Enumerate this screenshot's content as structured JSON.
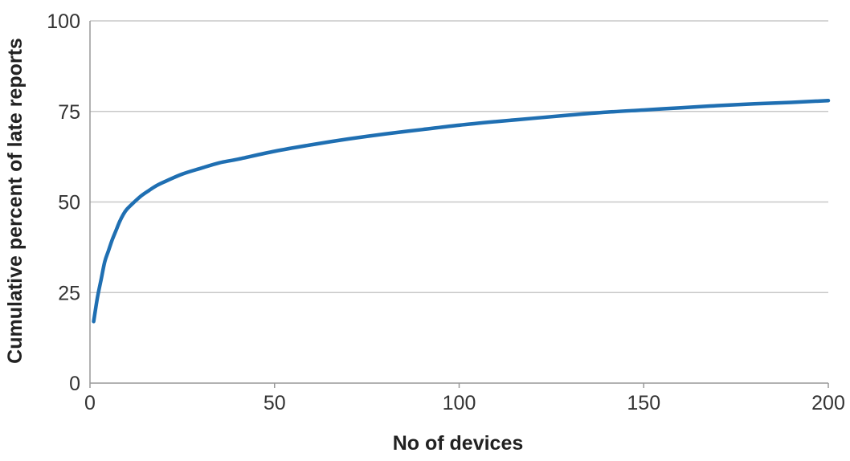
{
  "chart_data": {
    "type": "line",
    "title": "",
    "xlabel": "No of devices",
    "ylabel": "Cumulative percent of late reports",
    "xlim": [
      0,
      200
    ],
    "ylim": [
      0,
      100
    ],
    "xticks": [
      0,
      50,
      100,
      150,
      200
    ],
    "yticks": [
      0,
      25,
      50,
      75,
      100
    ],
    "grid": "horizontal",
    "legend": "none",
    "colors": {
      "line": "#1f6fb2",
      "grid": "#c8c8c8",
      "axis": "#999999"
    },
    "series": [
      {
        "x": [
          1,
          2,
          3,
          4,
          5,
          6,
          7,
          8,
          9,
          10,
          12,
          14,
          16,
          18,
          20,
          25,
          30,
          35,
          40,
          50,
          60,
          70,
          80,
          90,
          100,
          110,
          120,
          130,
          140,
          150,
          160,
          170,
          180,
          190,
          200
        ],
        "y": [
          17,
          23.5,
          28.5,
          33.5,
          36.5,
          39.5,
          42,
          44.5,
          46.5,
          48,
          50,
          51.8,
          53.2,
          54.5,
          55.5,
          57.7,
          59.3,
          60.8,
          61.8,
          64,
          65.8,
          67.4,
          68.8,
          70,
          71.2,
          72.2,
          73.1,
          74,
          74.8,
          75.4,
          76,
          76.6,
          77.1,
          77.5,
          78
        ]
      }
    ]
  }
}
